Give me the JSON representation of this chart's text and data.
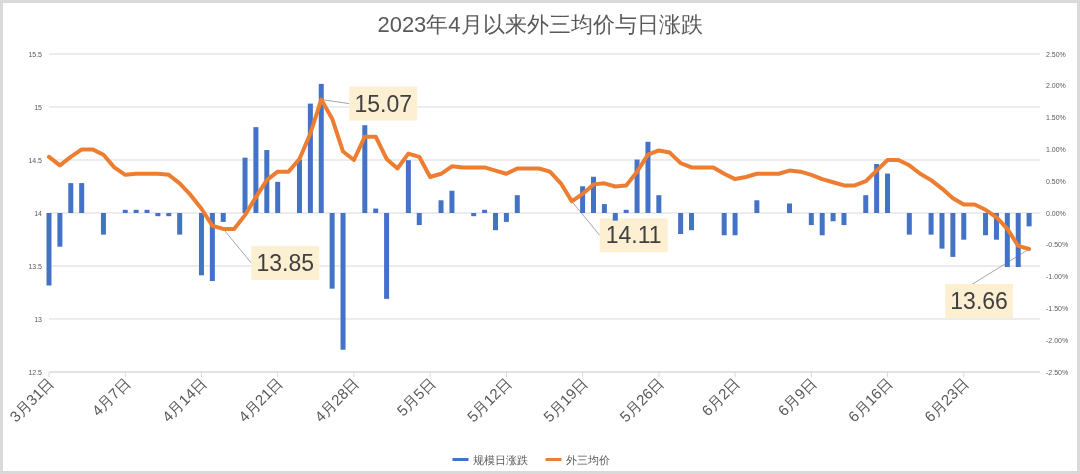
{
  "chart_data": {
    "type": "bar",
    "title": "2023年4月以来外三均价与日涨跌",
    "x": [
      "2023-03-31",
      "2023-04-01",
      "2023-04-02",
      "2023-04-03",
      "2023-04-04",
      "2023-04-05",
      "2023-04-06",
      "2023-04-07",
      "2023-04-08",
      "2023-04-09",
      "2023-04-10",
      "2023-04-11",
      "2023-04-12",
      "2023-04-13",
      "2023-04-14",
      "2023-04-15",
      "2023-04-16",
      "2023-04-17",
      "2023-04-18",
      "2023-04-19",
      "2023-04-20",
      "2023-04-21",
      "2023-04-22",
      "2023-04-23",
      "2023-04-24",
      "2023-04-25",
      "2023-04-26",
      "2023-04-27",
      "2023-04-28",
      "2023-04-29",
      "2023-04-30",
      "2023-05-01",
      "2023-05-02",
      "2023-05-03",
      "2023-05-04",
      "2023-05-05",
      "2023-05-06",
      "2023-05-07",
      "2023-05-08",
      "2023-05-09",
      "2023-05-10",
      "2023-05-11",
      "2023-05-12",
      "2023-05-13",
      "2023-05-14",
      "2023-05-15",
      "2023-05-16",
      "2023-05-17",
      "2023-05-18",
      "2023-05-19",
      "2023-05-20",
      "2023-05-21",
      "2023-05-22",
      "2023-05-23",
      "2023-05-24",
      "2023-05-25",
      "2023-05-26",
      "2023-05-27",
      "2023-05-28",
      "2023-05-29",
      "2023-05-30",
      "2023-05-31",
      "2023-06-01",
      "2023-06-02",
      "2023-06-03",
      "2023-06-04",
      "2023-06-05",
      "2023-06-06",
      "2023-06-07",
      "2023-06-08",
      "2023-06-09",
      "2023-06-10",
      "2023-06-11",
      "2023-06-12",
      "2023-06-13",
      "2023-06-14",
      "2023-06-15",
      "2023-06-16",
      "2023-06-17",
      "2023-06-18",
      "2023-06-19",
      "2023-06-20",
      "2023-06-21",
      "2023-06-22",
      "2023-06-23",
      "2023-06-24",
      "2023-06-25",
      "2023-06-26",
      "2023-06-27",
      "2023-06-28",
      "2023-06-29"
    ],
    "xlim": [
      "2023-03-31",
      "2023-06-30"
    ],
    "xticks": [
      {
        "value": "2023-03-31",
        "label": "3月31日"
      },
      {
        "value": "2023-04-07",
        "label": "4月7日"
      },
      {
        "value": "2023-04-14",
        "label": "4月14日"
      },
      {
        "value": "2023-04-21",
        "label": "4月21日"
      },
      {
        "value": "2023-04-28",
        "label": "4月28日"
      },
      {
        "value": "2023-05-05",
        "label": "5月5日"
      },
      {
        "value": "2023-05-12",
        "label": "5月12日"
      },
      {
        "value": "2023-05-19",
        "label": "5月19日"
      },
      {
        "value": "2023-05-26",
        "label": "5月26日"
      },
      {
        "value": "2023-06-02",
        "label": "6月2日"
      },
      {
        "value": "2023-06-09",
        "label": "6月9日"
      },
      {
        "value": "2023-06-16",
        "label": "6月16日"
      },
      {
        "value": "2023-06-23",
        "label": "6月23日"
      }
    ],
    "ylim": [
      12.5,
      15.5
    ],
    "yticks": [
      12.5,
      13,
      13.5,
      14,
      14.5,
      15,
      15.5
    ],
    "y2lim": [
      -2.5,
      2.5
    ],
    "y2ticks": [
      {
        "value": -2.5,
        "label": "-2.50%"
      },
      {
        "value": -2,
        "label": "-2.00%"
      },
      {
        "value": -1.5,
        "label": "-1.50%"
      },
      {
        "value": -1,
        "label": "-1.00%"
      },
      {
        "value": -0.5,
        "label": "-0.50%"
      },
      {
        "value": 0,
        "label": "0.00%"
      },
      {
        "value": 0.5,
        "label": "0.50%"
      },
      {
        "value": 1,
        "label": "1.00%"
      },
      {
        "value": 1.5,
        "label": "1.50%"
      },
      {
        "value": 2,
        "label": "2.00%"
      },
      {
        "value": 2.5,
        "label": "2.50%"
      }
    ],
    "grid": "y",
    "legend": "bottom",
    "series": [
      {
        "name": "规模日涨跌",
        "axis": "y2",
        "color": "#4472c4",
        "values": [
          -1.14,
          -0.53,
          0.47,
          0.47,
          null,
          -0.34,
          null,
          0.05,
          0.05,
          0.05,
          -0.05,
          -0.05,
          -0.34,
          null,
          -0.98,
          -1.07,
          -0.14,
          null,
          0.87,
          1.35,
          0.99,
          0.49,
          null,
          0.84,
          1.72,
          2.03,
          -1.19,
          -2.15,
          null,
          1.38,
          0.07,
          -1.35,
          null,
          0.83,
          -0.19,
          null,
          0.2,
          0.35,
          null,
          -0.05,
          0.05,
          -0.27,
          -0.14,
          0.28,
          null,
          null,
          null,
          null,
          null,
          0.42,
          0.57,
          0.14,
          -0.12,
          0.05,
          0.84,
          1.12,
          0.28,
          null,
          -0.33,
          -0.27,
          null,
          null,
          -0.35,
          -0.35,
          null,
          0.2,
          null,
          null,
          0.15,
          null,
          -0.19,
          -0.35,
          -0.13,
          -0.19,
          null,
          0.28,
          0.77,
          0.62,
          null,
          -0.34,
          null,
          -0.34,
          -0.56,
          -0.69,
          -0.42,
          null,
          -0.35,
          -0.42,
          -0.85,
          -0.85,
          -0.21
        ]
      },
      {
        "name": "外三均价",
        "type": "line",
        "color": "#ed7d31",
        "values": [
          14.53,
          14.45,
          14.53,
          14.6,
          14.6,
          14.55,
          14.43,
          14.36,
          14.37,
          14.37,
          14.37,
          14.36,
          14.28,
          14.17,
          14.04,
          13.88,
          13.85,
          13.85,
          13.98,
          14.15,
          14.31,
          14.39,
          14.39,
          14.51,
          14.75,
          15.07,
          14.89,
          14.58,
          14.5,
          14.72,
          14.72,
          14.51,
          14.42,
          14.56,
          14.53,
          14.34,
          14.37,
          14.44,
          14.43,
          14.43,
          14.43,
          14.4,
          14.37,
          14.42,
          14.42,
          14.42,
          14.39,
          14.28,
          14.11,
          14.18,
          14.27,
          14.28,
          14.25,
          14.26,
          14.39,
          14.55,
          14.59,
          14.57,
          14.47,
          14.43,
          14.43,
          14.43,
          14.37,
          14.32,
          14.34,
          14.37,
          14.37,
          14.37,
          14.4,
          14.39,
          14.36,
          14.32,
          14.29,
          14.26,
          14.26,
          14.3,
          14.4,
          14.5,
          14.5,
          14.45,
          14.37,
          14.31,
          14.23,
          14.14,
          14.08,
          14.08,
          14.03,
          13.96,
          13.85,
          13.69,
          13.66
        ],
        "value_labels": [
          null,
          null,
          null,
          null,
          null,
          null,
          null,
          null,
          null,
          null,
          null,
          null,
          null,
          null,
          null,
          null,
          "13.85",
          null,
          null,
          null,
          null,
          null,
          null,
          null,
          null,
          "15.07",
          null,
          null,
          null,
          null,
          null,
          null,
          null,
          null,
          null,
          null,
          null,
          null,
          null,
          null,
          null,
          null,
          null,
          null,
          null,
          null,
          null,
          null,
          "14.11",
          null,
          null,
          null,
          null,
          null,
          null,
          null,
          null,
          null,
          null,
          null,
          null,
          null,
          null,
          null,
          null,
          null,
          null,
          null,
          null,
          null,
          null,
          null,
          null,
          null,
          null,
          null,
          null,
          null,
          null,
          null,
          null,
          null,
          null,
          null,
          null,
          null,
          null,
          null,
          null,
          null,
          "13.66"
        ]
      }
    ]
  }
}
